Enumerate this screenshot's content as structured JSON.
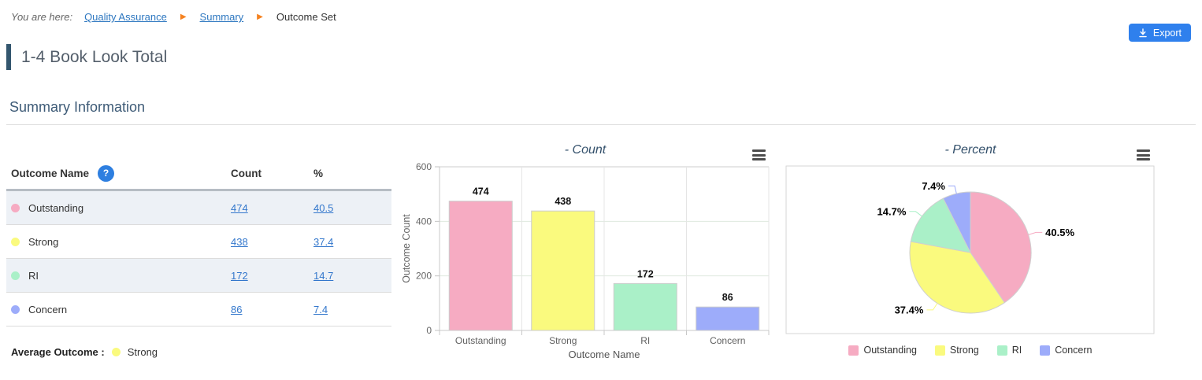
{
  "breadcrumb": {
    "prefix": "You are here:",
    "items": [
      {
        "label": "Quality Assurance",
        "link": true
      },
      {
        "label": "Summary",
        "link": true
      },
      {
        "label": "Outcome Set",
        "link": false
      }
    ]
  },
  "export_button": {
    "label": "Export"
  },
  "page_title": "1-4 Book Look Total",
  "section_heading": "Summary Information",
  "colors": {
    "accent_blue": "#2f80ed",
    "link_blue": "#2d77c0",
    "breadcrumb_arrow_orange": "#f58220",
    "title_accent": "#33566e",
    "outstanding": "#f6abc2",
    "strong": "#fafa7e",
    "ri": "#aaf0c8",
    "concern": "#9dacfa"
  },
  "table": {
    "headers": {
      "name": "Outcome Name",
      "count": "Count",
      "percent": "%"
    },
    "rows": [
      {
        "name": "Outstanding",
        "count": "474",
        "percent": "40.5",
        "color": "#f6abc2"
      },
      {
        "name": "Strong",
        "count": "438",
        "percent": "37.4",
        "color": "#fafa7e"
      },
      {
        "name": "RI",
        "count": "172",
        "percent": "14.7",
        "color": "#aaf0c8"
      },
      {
        "name": "Concern",
        "count": "86",
        "percent": "7.4",
        "color": "#9dacfa"
      }
    ],
    "average_label": "Average Outcome :",
    "average_value": "Strong",
    "average_color": "#fafa7e"
  },
  "chart_data": [
    {
      "type": "bar",
      "title": "- Count",
      "categories": [
        "Outstanding",
        "Strong",
        "RI",
        "Concern"
      ],
      "values": [
        474,
        438,
        172,
        86
      ],
      "colors": [
        "#f6abc2",
        "#fafa7e",
        "#aaf0c8",
        "#9dacfa"
      ],
      "xlabel": "Outcome Name",
      "ylabel": "Outcome Count",
      "ylim": [
        0,
        600
      ],
      "yticks": [
        0,
        200,
        400,
        600
      ],
      "grid": true,
      "legend_position": "none"
    },
    {
      "type": "pie",
      "title": "- Percent",
      "labels": [
        "Outstanding",
        "Strong",
        "RI",
        "Concern"
      ],
      "values": [
        40.5,
        37.4,
        14.7,
        7.4
      ],
      "value_labels": [
        "40.5%",
        "37.4%",
        "14.7%",
        "7.4%"
      ],
      "colors": [
        "#f6abc2",
        "#fafa7e",
        "#aaf0c8",
        "#9dacfa"
      ],
      "legend_position": "bottom"
    }
  ]
}
